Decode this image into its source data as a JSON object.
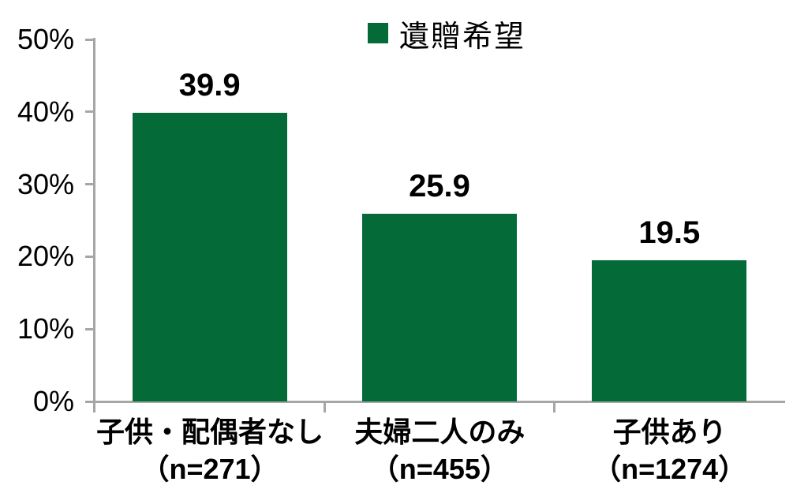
{
  "legend": {
    "label": "遺贈希望"
  },
  "colors": {
    "bar": "#046a38",
    "axis": "#a6a6a6",
    "label": "#000000"
  },
  "chart_data": {
    "type": "bar",
    "title": "",
    "xlabel": "",
    "ylabel": "",
    "categories": [
      "子供・配偶者なし",
      "夫婦二人のみ",
      "子供あり"
    ],
    "category_sublabels": [
      "（n=271）",
      "（n=455）",
      "（n=1274）"
    ],
    "series": [
      {
        "name": "遺贈希望",
        "values": [
          39.9,
          25.9,
          19.5
        ]
      }
    ],
    "value_labels": [
      "39.9",
      "25.9",
      "19.5"
    ],
    "yticks": [
      "0%",
      "10%",
      "20%",
      "30%",
      "40%",
      "50%"
    ],
    "ylim": [
      0,
      50
    ],
    "grid": false,
    "legend_position": "top"
  }
}
